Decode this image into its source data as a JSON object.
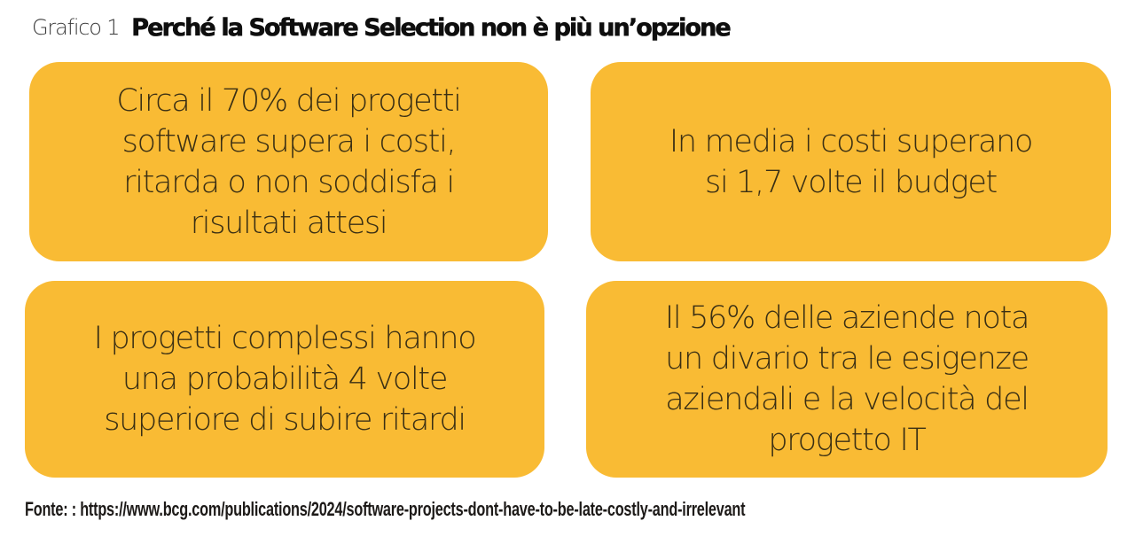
{
  "header": {
    "label": "Grafico 1",
    "title": "Perché la Software Selection non è più un’opzione"
  },
  "colors": {
    "card_background": "#f9bb34",
    "card_text": "#3a2f14",
    "title_text": "#0e0e0e",
    "page_background": "#ffffff"
  },
  "cards": [
    {
      "text": "Circa il 70% dei progetti\nsoftware supera i costi,\nritarda o non soddisfa i\nrisultati attesi"
    },
    {
      "text": "In media i costi superano\nsi 1,7 volte il budget"
    },
    {
      "text": "I progetti complessi hanno\nuna probabilità 4 volte\nsuperiore di subire ritardi"
    },
    {
      "text": "Il 56% delle aziende nota\nun divario tra le esigenze\naziendali e la velocità del\nprogetto IT"
    }
  ],
  "source": {
    "text": "Fonte: : https://www.bcg.com/publications/2024/software-projects-dont-have-to-be-late-costly-and-irrelevant"
  }
}
